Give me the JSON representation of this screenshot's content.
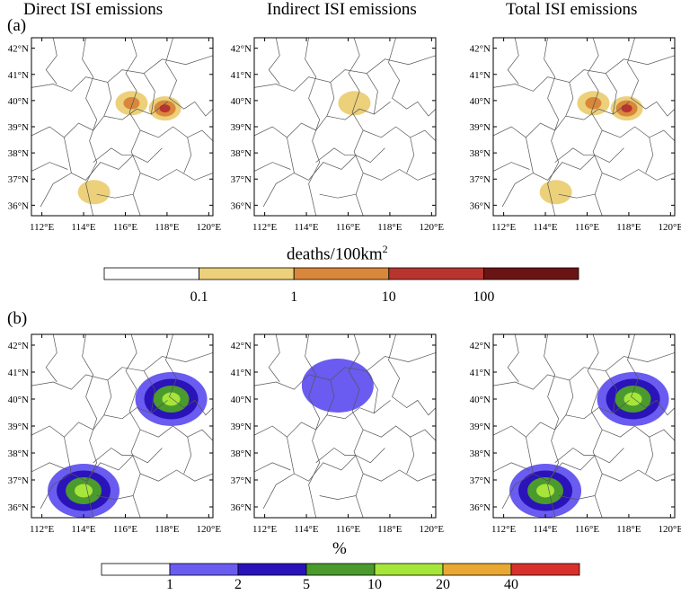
{
  "column_titles": [
    "Direct ISI emissions",
    "Indirect ISI emissions",
    "Total ISI emissions"
  ],
  "panel_labels": {
    "a": "(a)",
    "b": "(b)"
  },
  "colorbar_a": {
    "title": "deaths/100km",
    "title_sup": "2",
    "ticks": [
      "0.1",
      "1",
      "10",
      "100"
    ],
    "colors": [
      "#ffffff",
      "#ecd07a",
      "#d9873a",
      "#b8342f",
      "#6a1414"
    ]
  },
  "colorbar_b": {
    "title": "%",
    "ticks": [
      "1",
      "2",
      "5",
      "10",
      "20",
      "40"
    ],
    "colors": [
      "#ffffff",
      "#6a5cf0",
      "#2a13b8",
      "#4a9a2e",
      "#a6e63a",
      "#e8a832",
      "#d8302a"
    ]
  },
  "chart_data": [
    {
      "type": "heatmap",
      "panel": "a",
      "maps": [
        {
          "title": "Direct ISI emissions",
          "hotspots": [
            {
              "lon": 117.9,
              "lat": 39.7,
              "level": 3
            },
            {
              "lon": 116.3,
              "lat": 39.9,
              "level": 2
            },
            {
              "lon": 114.5,
              "lat": 36.5,
              "level": 1
            }
          ]
        },
        {
          "title": "Indirect ISI emissions",
          "hotspots": [
            {
              "lon": 116.3,
              "lat": 39.9,
              "level": 1
            }
          ]
        },
        {
          "title": "Total ISI emissions",
          "hotspots": [
            {
              "lon": 117.9,
              "lat": 39.7,
              "level": 3
            },
            {
              "lon": 116.3,
              "lat": 39.9,
              "level": 2
            },
            {
              "lon": 114.5,
              "lat": 36.5,
              "level": 1
            }
          ]
        }
      ],
      "xticks": [
        "112°E",
        "114°E",
        "116°E",
        "118°E",
        "120°E"
      ],
      "yticks": [
        "42°N",
        "41°N",
        "40°N",
        "39°N",
        "38°N",
        "37°N",
        "36°N"
      ],
      "xlim": [
        111.5,
        120.2
      ],
      "ylim": [
        35.6,
        42.4
      ],
      "unit": "deaths/100km²"
    },
    {
      "type": "heatmap",
      "panel": "b",
      "maps": [
        {
          "title": "Direct ISI emissions",
          "hotspots": [
            {
              "lon": 118.2,
              "lat": 40.0,
              "level": 4
            },
            {
              "lon": 114.0,
              "lat": 36.6,
              "level": 4
            }
          ]
        },
        {
          "title": "Indirect ISI emissions",
          "hotspots": [
            {
              "lon": 115.5,
              "lat": 40.5,
              "level": 1
            }
          ]
        },
        {
          "title": "Total ISI emissions",
          "hotspots": [
            {
              "lon": 118.2,
              "lat": 40.0,
              "level": 4
            },
            {
              "lon": 114.0,
              "lat": 36.6,
              "level": 4
            }
          ]
        }
      ],
      "xticks": [
        "112°E",
        "114°E",
        "116°E",
        "118°E",
        "120°E"
      ],
      "yticks": [
        "42°N",
        "41°N",
        "40°N",
        "39°N",
        "38°N",
        "37°N",
        "36°N"
      ],
      "xlim": [
        111.5,
        120.2
      ],
      "ylim": [
        35.6,
        42.4
      ],
      "unit": "%"
    }
  ]
}
